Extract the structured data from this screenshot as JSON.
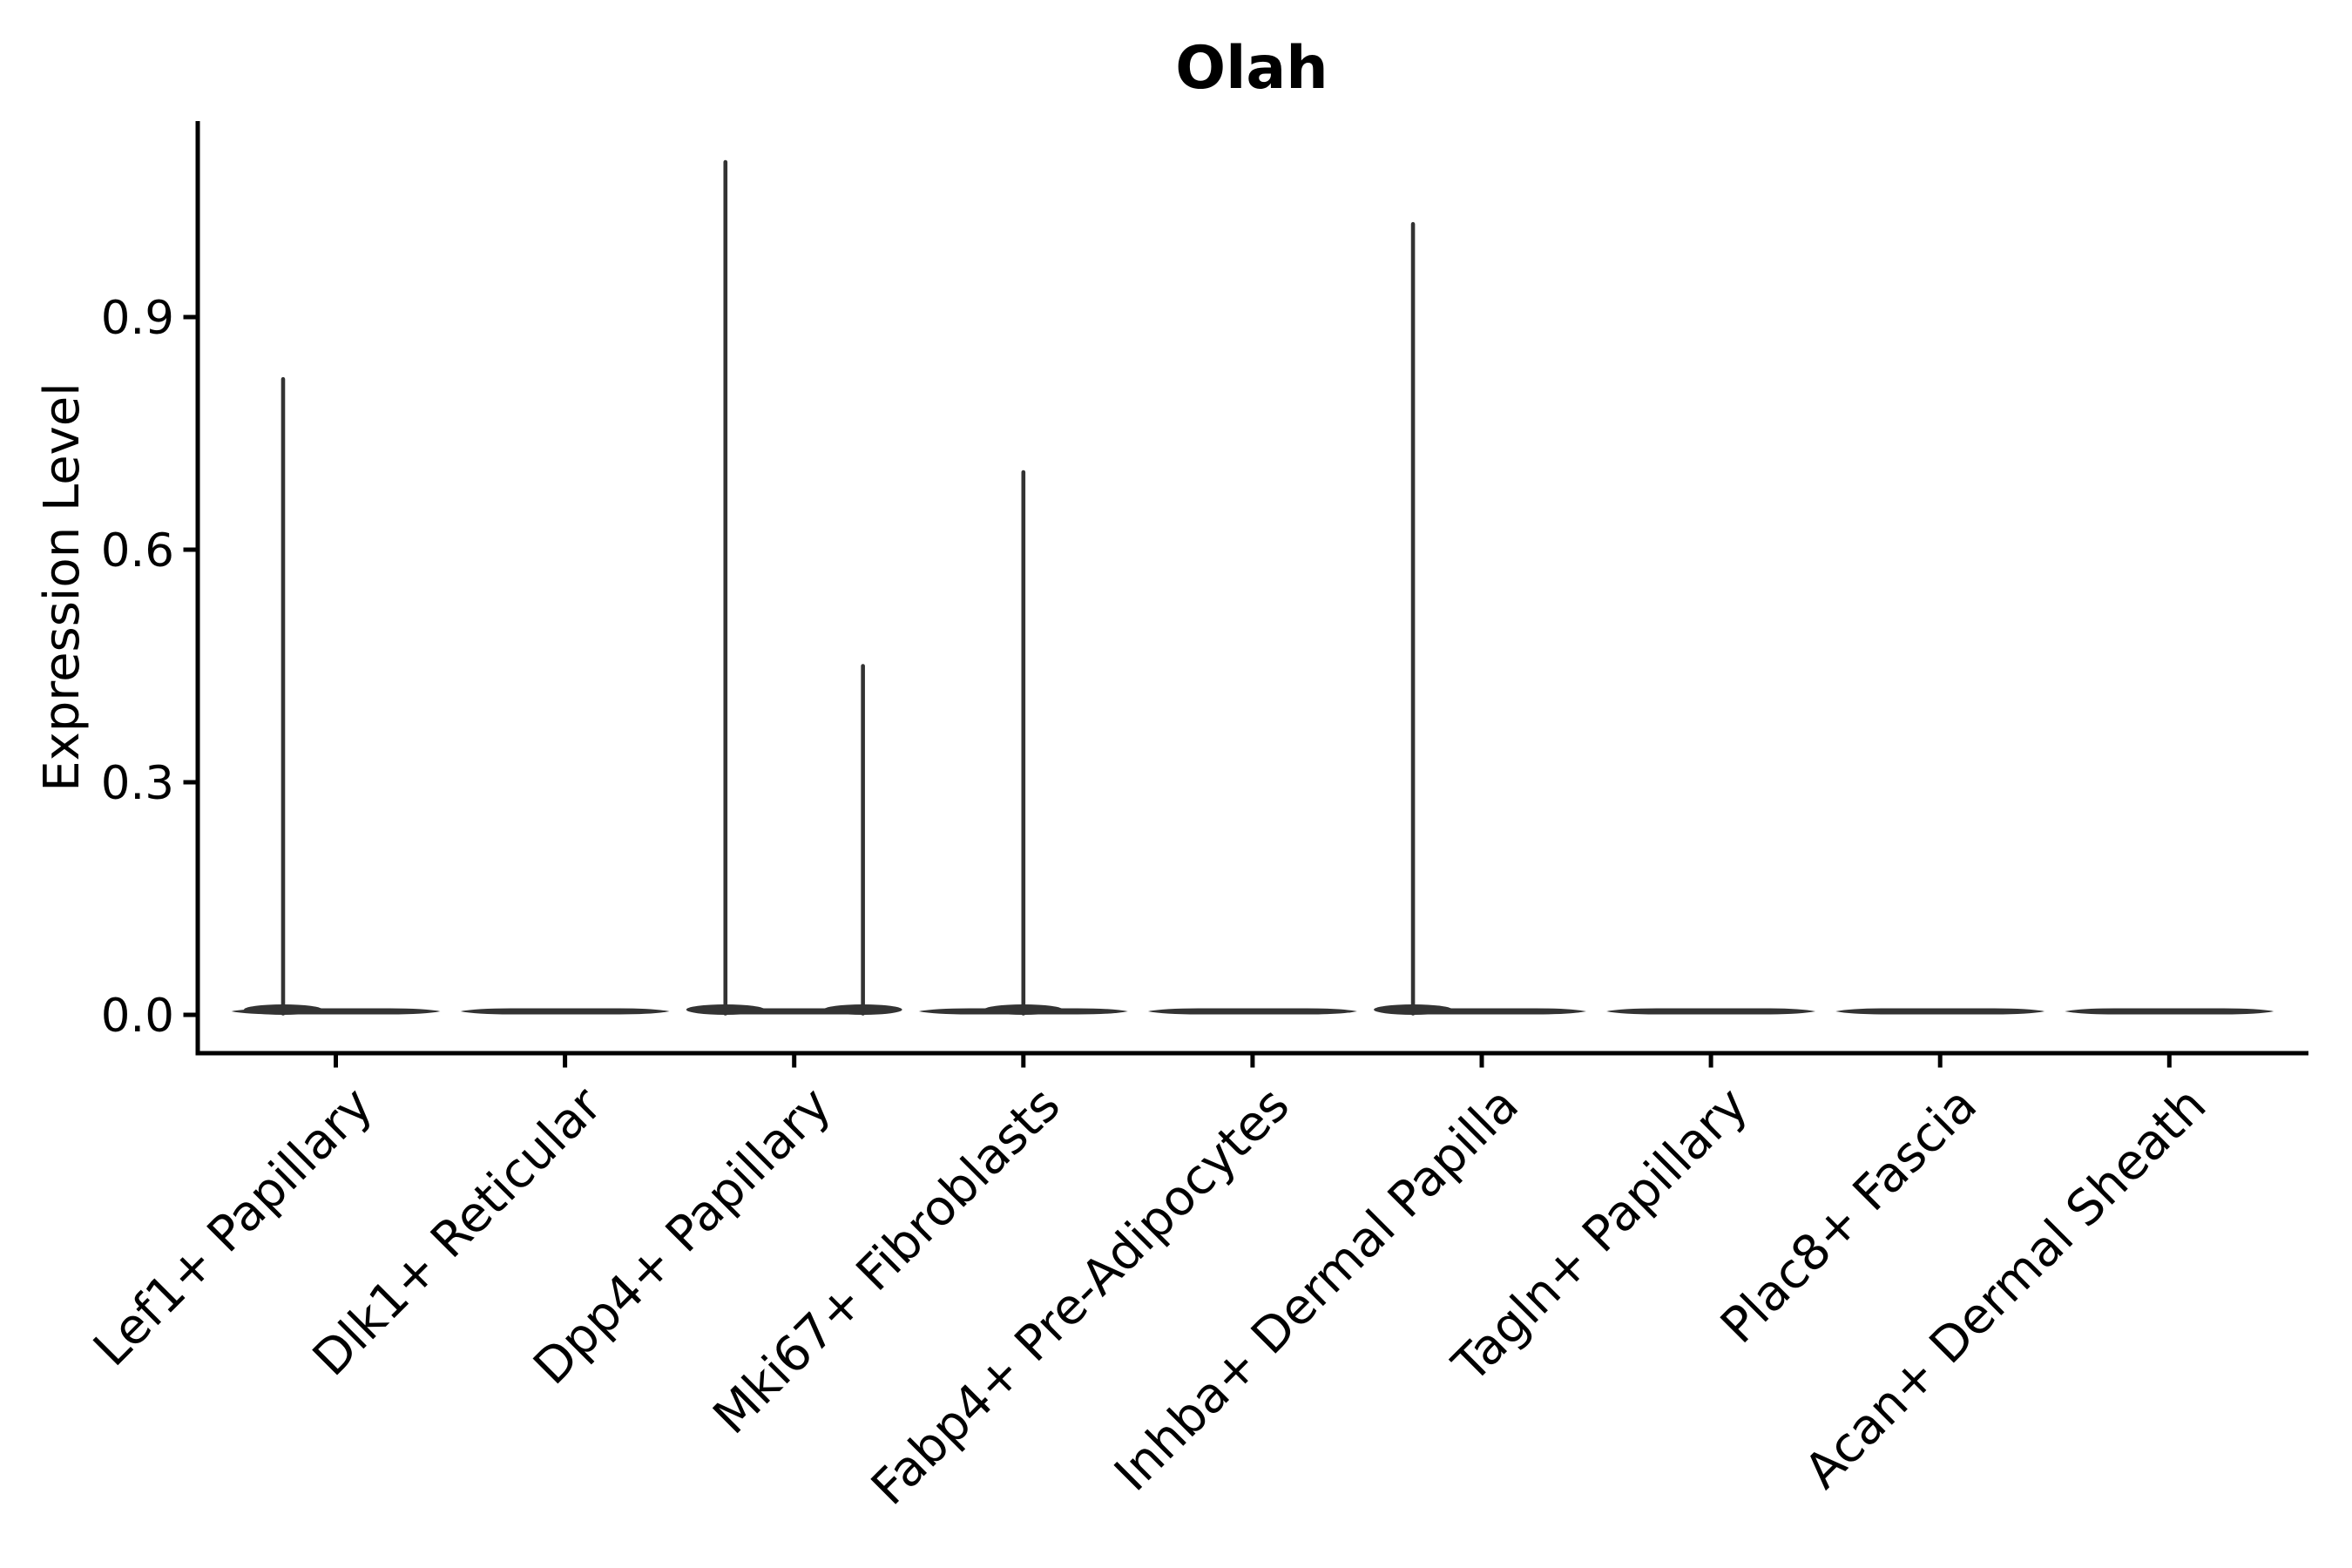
{
  "figure": {
    "background_color": "#ffffff"
  },
  "chart_data": {
    "type": "violin",
    "title": "Olah",
    "xlabel": "",
    "ylabel": "Expression Level",
    "categories": [
      "Lef1+ Papillary",
      "Dlk1+ Reticular",
      "Dpp4+ Papillary",
      "Mki67+ Fibroblasts",
      "Fabp4+ Pre-Adipocytes",
      "Inhba+ Dermal Papilla",
      "Tagln+ Papillary",
      "Plac8+ Fascia",
      "Acan+ Dermal Sheath"
    ],
    "yticks": [
      0.0,
      0.3,
      0.6,
      0.9
    ],
    "ytick_labels": [
      "0.0",
      "0.3",
      "0.6",
      "0.9"
    ],
    "ylim": [
      -0.05,
      1.15
    ],
    "grid": false,
    "legend": null,
    "x_label_rotation_deg": 45,
    "violins": [
      {
        "category": "Lef1+ Papillary",
        "baseline_value": 0.0,
        "spikes": [
          {
            "value": 0.82,
            "offset_frac": -0.23
          }
        ]
      },
      {
        "category": "Dlk1+ Reticular",
        "baseline_value": 0.0,
        "spikes": []
      },
      {
        "category": "Dpp4+ Papillary",
        "baseline_value": 0.0,
        "spikes": [
          {
            "value": 1.1,
            "offset_frac": -0.3
          },
          {
            "value": 0.45,
            "offset_frac": 0.3
          }
        ]
      },
      {
        "category": "Mki67+ Fibroblasts",
        "baseline_value": 0.0,
        "spikes": [
          {
            "value": 0.7,
            "offset_frac": 0.0
          }
        ]
      },
      {
        "category": "Fabp4+ Pre-Adipocytes",
        "baseline_value": 0.0,
        "spikes": []
      },
      {
        "category": "Inhba+ Dermal Papilla",
        "baseline_value": 0.0,
        "spikes": [
          {
            "value": 1.02,
            "offset_frac": -0.3
          }
        ]
      },
      {
        "category": "Tagln+ Papillary",
        "baseline_value": 0.0,
        "spikes": []
      },
      {
        "category": "Plac8+ Fascia",
        "baseline_value": 0.0,
        "spikes": []
      },
      {
        "category": "Acan+ Dermal Sheath",
        "baseline_value": 0.0,
        "spikes": []
      }
    ],
    "colors": {
      "violin": "#333333",
      "axis": "#000000",
      "text": "#000000",
      "background": "#ffffff"
    }
  }
}
